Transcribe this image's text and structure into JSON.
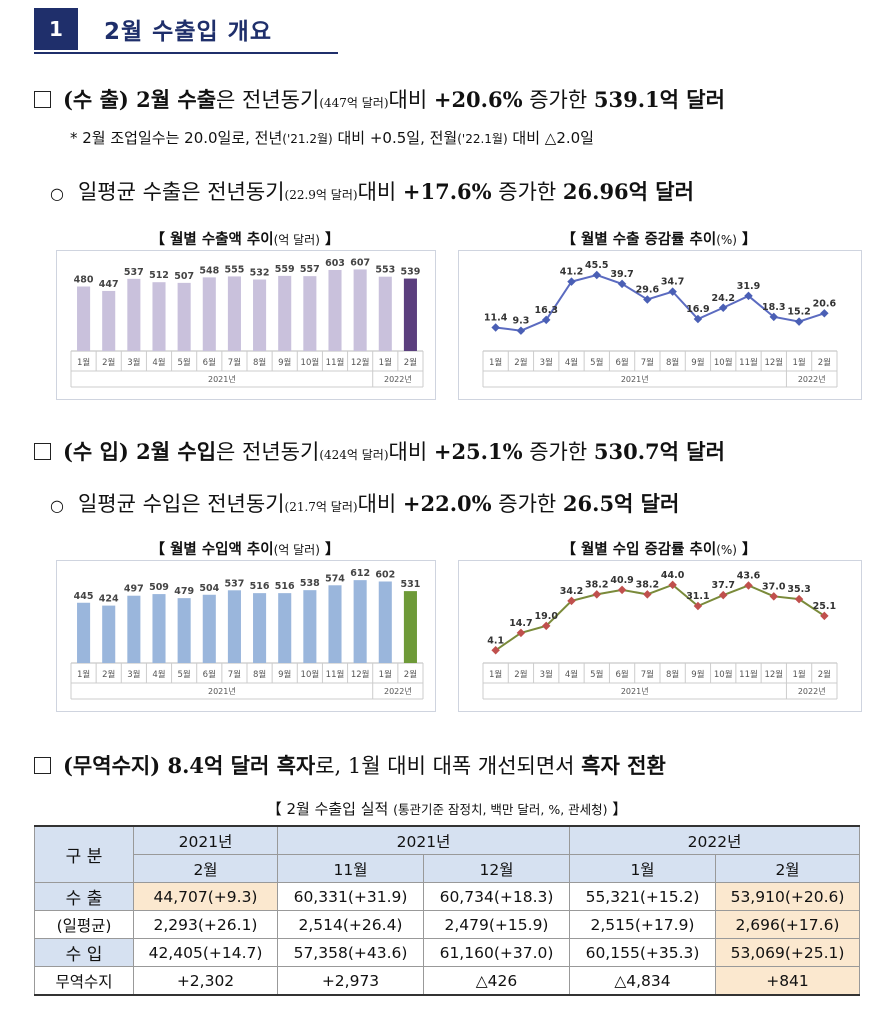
{
  "section": {
    "number": "1",
    "title": "2월 수출입 개요"
  },
  "export_line": {
    "head": "(수 출) 2월 수출",
    "p1": "은 전년동기",
    "prev": "(447억 달러)",
    "p2": "대비 ",
    "rate": "+20.6%",
    "p3": " 증가한 ",
    "value": "539.1억 달러"
  },
  "note_line": {
    "t1": "* 2월 조업일수는 20.0일로, 전년",
    "s1": "('21.2월)",
    "t2": " 대비 +0.5일, 전월",
    "s2": "('22.1월)",
    "t3": " 대비 △2.0일"
  },
  "export_daily": {
    "bullet": "○",
    "p1": "일평균 수출은 전년동기",
    "prev": "(22.9억 달러)",
    "p2": "대비 ",
    "rate": "+17.6%",
    "p3": " 증가한 ",
    "value": "26.96억 달러"
  },
  "import_line": {
    "head": "(수 입) 2월 수입",
    "p1": "은 전년동기",
    "prev": "(424억 달러)",
    "p2": "대비 ",
    "rate": "+25.1%",
    "p3": " 증가한 ",
    "value": "530.7억 달러"
  },
  "import_daily": {
    "bullet": "○",
    "p1": "일평균 수입은 전년동기",
    "prev": "(21.7억 달러)",
    "p2": "대비 ",
    "rate": "+22.0%",
    "p3": " 증가한 ",
    "value": "26.5억 달러"
  },
  "balance_line": {
    "head": "(무역수지) 8.4억 달러 흑자",
    "p1": "로, 1월 대비 대폭 개선되면서 ",
    "tail": "흑자 전환"
  },
  "table_title": {
    "main": "【 2월 수출입 실적 ",
    "sub": "(통관기준 잠정치, 백만 달러, %, 관세청)",
    "end": " 】"
  },
  "colors": {
    "navy": "#1f2f6b",
    "export_bar": "#c9c1dc",
    "export_last": "#5b3f7e",
    "import_bar": "#9ab6dc",
    "import_last": "#6e9a38",
    "line": "#5b6bc0",
    "marker_exp": "#4a5fb5",
    "marker_imp": "#c0504d",
    "import_line": "#7a8a3a",
    "highlight": "#fbe8cf",
    "header_bg": "#d6e1f1"
  },
  "chart_data": [
    {
      "type": "bar",
      "title_main": "【 월별 수출액 추이",
      "title_unit": "(억 달러)",
      "title_end": " 】",
      "categories": [
        "1월",
        "2월",
        "3월",
        "4월",
        "5월",
        "6월",
        "7월",
        "8월",
        "9월",
        "10월",
        "11월",
        "12월",
        "1월",
        "2월"
      ],
      "year_labels": [
        "2021년",
        "2022년"
      ],
      "values": [
        480,
        447,
        537,
        512,
        507,
        548,
        555,
        532,
        559,
        557,
        603,
        607,
        553,
        539
      ],
      "ylim": [
        0,
        640
      ]
    },
    {
      "type": "line",
      "title_main": "【 월별 수출 증감률 추이",
      "title_unit": "(%)",
      "title_end": " 】",
      "categories": [
        "1월",
        "2월",
        "3월",
        "4월",
        "5월",
        "6월",
        "7월",
        "8월",
        "9월",
        "10월",
        "11월",
        "12월",
        "1월",
        "2월"
      ],
      "year_labels": [
        "2021년",
        "2022년"
      ],
      "values": [
        11.4,
        9.3,
        16.3,
        41.2,
        45.5,
        39.7,
        29.6,
        34.7,
        16.9,
        24.2,
        31.9,
        18.3,
        15.2,
        20.6
      ],
      "labels": [
        "11.4",
        "9.3",
        "16.3",
        "41.2",
        "45.5",
        "39.7",
        "29.6",
        "34.7",
        "16.9",
        "24.2",
        "31.9",
        "18.3",
        "15.2",
        "20.6"
      ],
      "ylim": [
        0,
        52
      ]
    },
    {
      "type": "bar",
      "title_main": "【 월별 수입액 추이",
      "title_unit": "(억 달러)",
      "title_end": " 】",
      "categories": [
        "1월",
        "2월",
        "3월",
        "4월",
        "5월",
        "6월",
        "7월",
        "8월",
        "9월",
        "10월",
        "11월",
        "12월",
        "1월",
        "2월"
      ],
      "year_labels": [
        "2021년",
        "2022년"
      ],
      "values": [
        445,
        424,
        497,
        509,
        479,
        504,
        537,
        516,
        516,
        538,
        574,
        612,
        602,
        531
      ],
      "ylim": [
        0,
        650
      ]
    },
    {
      "type": "line",
      "title_main": "【 월별 수입 증감률 추이",
      "title_unit": "(%)",
      "title_end": " 】",
      "categories": [
        "1월",
        "2월",
        "3월",
        "4월",
        "5월",
        "6월",
        "7월",
        "8월",
        "9월",
        "10월",
        "11월",
        "12월",
        "1월",
        "2월"
      ],
      "year_labels": [
        "2021년",
        "2022년"
      ],
      "values": [
        4.1,
        14.7,
        19.0,
        34.2,
        38.2,
        40.9,
        38.2,
        44.0,
        31.1,
        37.7,
        43.6,
        37.0,
        35.3,
        25.1
      ],
      "labels": [
        "4.1",
        "14.7",
        "19.0",
        "34.2",
        "38.2",
        "40.9",
        "38.2",
        "44.0",
        "31.1",
        "37.7",
        "43.6",
        "37.0",
        "35.3",
        "25.1"
      ],
      "ylim": [
        0,
        50
      ]
    }
  ],
  "table": {
    "corner": "구 분",
    "years": [
      "2021년",
      "2021년",
      "2022년"
    ],
    "months": [
      "2월",
      "11월",
      "12월",
      "1월",
      "2월"
    ],
    "rows": [
      {
        "label": "수 출",
        "cells": [
          "44,707(+9.3)",
          "60,331(+31.9)",
          "60,734(+18.3)",
          "55,321(+15.2)",
          "53,910(+20.6)"
        ]
      },
      {
        "label": "(일평균)",
        "cells": [
          "2,293(+26.1)",
          "2,514(+26.4)",
          "2,479(+15.9)",
          "2,515(+17.9)",
          "2,696(+17.6)"
        ]
      },
      {
        "label": "수 입",
        "cells": [
          "42,405(+14.7)",
          "57,358(+43.6)",
          "61,160(+37.0)",
          "60,155(+35.3)",
          "53,069(+25.1)"
        ]
      },
      {
        "label": "무역수지",
        "cells": [
          "+2,302",
          "+2,973",
          "△426",
          "△4,834",
          "+841"
        ]
      }
    ]
  }
}
